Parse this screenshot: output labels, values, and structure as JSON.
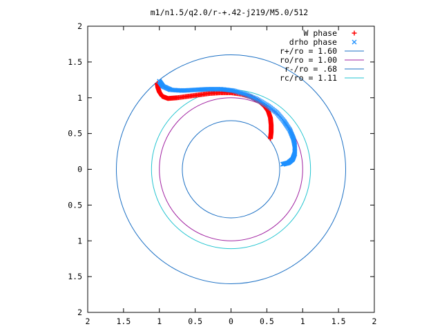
{
  "chart_data": {
    "type": "scatter",
    "title": "m1/n1.5/q2.0/r-+.42-j219/M5.0/512",
    "xlabel": "",
    "ylabel": "",
    "xlim": [
      -2,
      2
    ],
    "ylim": [
      -2,
      2
    ],
    "x_ticks": [
      -2,
      -1.5,
      -1,
      -0.5,
      0,
      0.5,
      1,
      1.5,
      2
    ],
    "y_ticks": [
      -2,
      -1.5,
      -1,
      -0.5,
      0,
      0.5,
      1,
      1.5,
      2
    ],
    "x_tick_labels": [
      "2",
      "1.5",
      "1",
      "0.5",
      "0",
      "0.5",
      "1",
      "1.5",
      "2"
    ],
    "y_tick_labels": [
      "2",
      "1.5",
      "1",
      "0.5",
      "0",
      "0.5",
      "1",
      "1.5",
      "2"
    ],
    "grid": false,
    "legend_position": "top-right",
    "series": [
      {
        "name": "W phase",
        "marker": "+",
        "color": "#ff0000",
        "points": [
          [
            0.55,
            0.43
          ],
          [
            0.56,
            0.52
          ],
          [
            0.56,
            0.62
          ],
          [
            0.55,
            0.72
          ],
          [
            0.52,
            0.81
          ],
          [
            0.47,
            0.88
          ],
          [
            0.39,
            0.95
          ],
          [
            0.28,
            1.01
          ],
          [
            0.15,
            1.05
          ],
          [
            0.0,
            1.07
          ],
          [
            -0.15,
            1.07
          ],
          [
            -0.3,
            1.06
          ],
          [
            -0.45,
            1.04
          ],
          [
            -0.6,
            1.02
          ],
          [
            -0.75,
            1.0
          ],
          [
            -0.88,
            0.99
          ],
          [
            -0.96,
            1.02
          ],
          [
            -1.0,
            1.08
          ],
          [
            -1.02,
            1.14
          ],
          [
            -1.03,
            1.2
          ]
        ]
      },
      {
        "name": "drho phase",
        "marker": "x",
        "color": "#1e90ff",
        "points": [
          [
            0.72,
            0.07
          ],
          [
            0.8,
            0.09
          ],
          [
            0.86,
            0.14
          ],
          [
            0.89,
            0.22
          ],
          [
            0.89,
            0.33
          ],
          [
            0.87,
            0.43
          ],
          [
            0.82,
            0.55
          ],
          [
            0.74,
            0.67
          ],
          [
            0.64,
            0.79
          ],
          [
            0.51,
            0.89
          ],
          [
            0.36,
            0.98
          ],
          [
            0.2,
            1.05
          ],
          [
            0.03,
            1.1
          ],
          [
            -0.14,
            1.12
          ],
          [
            -0.32,
            1.12
          ],
          [
            -0.5,
            1.11
          ],
          [
            -0.68,
            1.1
          ],
          [
            -0.84,
            1.11
          ],
          [
            -0.95,
            1.16
          ],
          [
            -1.0,
            1.23
          ]
        ]
      },
      {
        "name": "r+/ro = 1.60",
        "type": "circle",
        "radius": 1.6,
        "color": "#1a6fc4"
      },
      {
        "name": "ro/ro = 1.00",
        "type": "circle",
        "radius": 1.0,
        "color": "#a020a0"
      },
      {
        "name": "r-/ro = .68",
        "type": "circle",
        "radius": 0.68,
        "color": "#1a6fc4"
      },
      {
        "name": "rc/ro = 1.11",
        "type": "circle",
        "radius": 1.11,
        "color": "#22c4d0"
      }
    ]
  }
}
